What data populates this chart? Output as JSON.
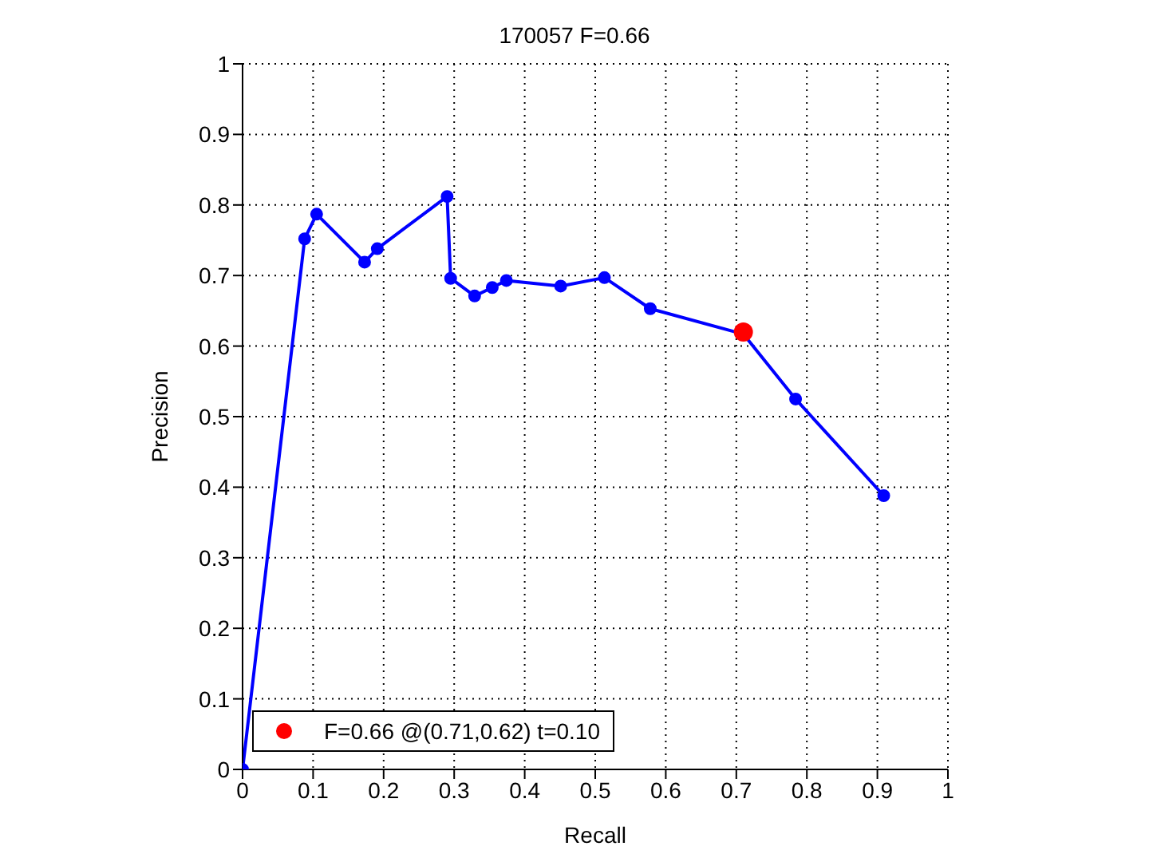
{
  "chart_data": {
    "type": "line",
    "title": "170057 F=0.66",
    "xlabel": "Recall",
    "ylabel": "Precision",
    "xlim": [
      0,
      1
    ],
    "ylim": [
      0,
      1
    ],
    "xticks": [
      0,
      0.1,
      0.2,
      0.3,
      0.4,
      0.5,
      0.6,
      0.7,
      0.8,
      0.9,
      1
    ],
    "yticks": [
      0,
      0.1,
      0.2,
      0.3,
      0.4,
      0.5,
      0.6,
      0.7,
      0.8,
      0.9,
      1
    ],
    "grid": true,
    "legend": "bottom left",
    "marker": "circle",
    "series": [
      {
        "color": "#0000ff",
        "x": [
          0,
          0.088,
          0.105,
          0.173,
          0.191,
          0.29,
          0.295,
          0.329,
          0.354,
          0.374,
          0.451,
          0.513,
          0.578,
          0.71,
          0.784,
          0.909
        ],
        "values": [
          0,
          0.752,
          0.787,
          0.719,
          0.738,
          0.812,
          0.696,
          0.671,
          0.683,
          0.693,
          0.685,
          0.697,
          0.653,
          0.617,
          0.525,
          0.388
        ]
      },
      {
        "type": "scatter",
        "name": "F=0.66 @(0.71,0.62) t=0.10",
        "color": "#ff0000",
        "x": [
          0.71
        ],
        "values": [
          0.62
        ]
      }
    ]
  }
}
